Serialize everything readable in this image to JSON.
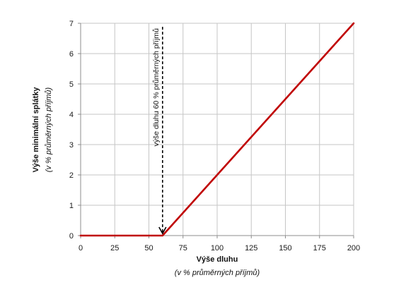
{
  "chart_data": {
    "type": "line",
    "title": "",
    "xlabel": "Výše dluhu",
    "xlabel_sub": "(v % průměrných příjmů)",
    "ylabel": "Výše minimální splátky",
    "ylabel_sub": "(v % průměrných příjmů)",
    "xlim": [
      0,
      200
    ],
    "ylim": [
      0,
      7
    ],
    "x_ticks": [
      0,
      25,
      50,
      75,
      100,
      125,
      150,
      175,
      200
    ],
    "y_ticks": [
      0,
      1,
      2,
      3,
      4,
      5,
      6,
      7
    ],
    "grid": true,
    "legend": "none",
    "series": [
      {
        "color": "#c00000",
        "x": [
          0,
          60,
          200
        ],
        "y": [
          0,
          0,
          7
        ]
      }
    ],
    "annotations": [
      {
        "text": "výše dluhu 60 % průměrných příjmů",
        "x": 60,
        "style": "dashed-arrow-down",
        "color": "#000000"
      }
    ]
  }
}
